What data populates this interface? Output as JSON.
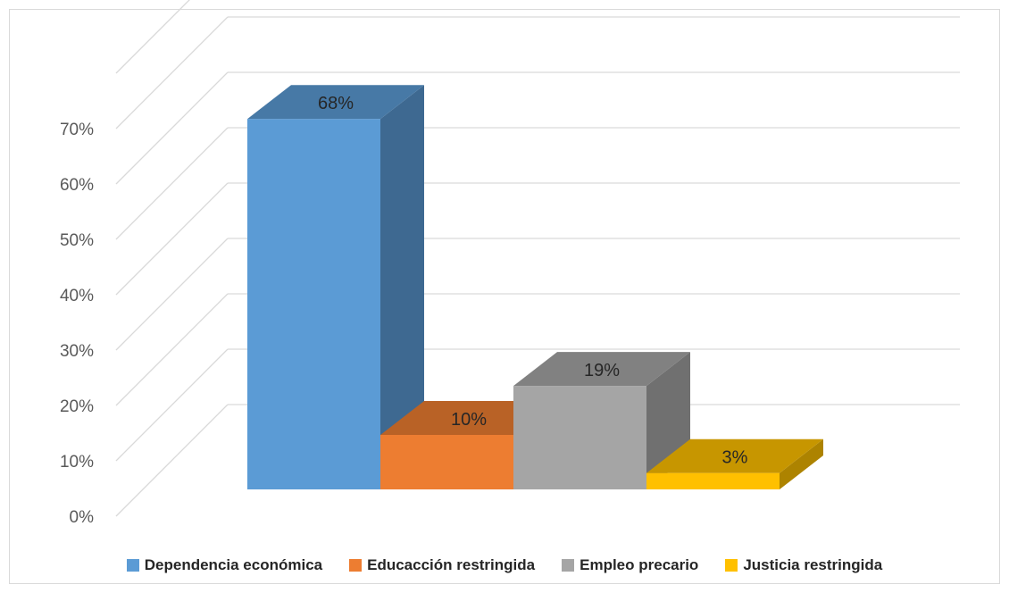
{
  "chart_data": {
    "type": "bar",
    "title": "",
    "xlabel": "",
    "ylabel": "",
    "categories": [
      "Dependencia económica",
      "Educacción restringida",
      "Empleo precario",
      "Justicia restringida"
    ],
    "values": [
      68,
      10,
      19,
      3
    ],
    "data_labels": [
      "68%",
      "10%",
      "19%",
      "3%"
    ],
    "colors": [
      "#5b9bd5",
      "#ed7d31",
      "#a5a5a5",
      "#ffc000"
    ],
    "ylim": [
      0,
      70
    ],
    "yticks": [
      0,
      10,
      20,
      30,
      40,
      50,
      60,
      70
    ],
    "ytick_labels": [
      "0%",
      "10%",
      "20%",
      "30%",
      "40%",
      "50%",
      "60%",
      "70%"
    ],
    "grid": true,
    "style": "3d",
    "legend": {
      "position": "bottom",
      "entries": [
        "Dependencia económica",
        "Educacción restringida",
        "Empleo precario",
        "Justicia restringida"
      ]
    }
  }
}
